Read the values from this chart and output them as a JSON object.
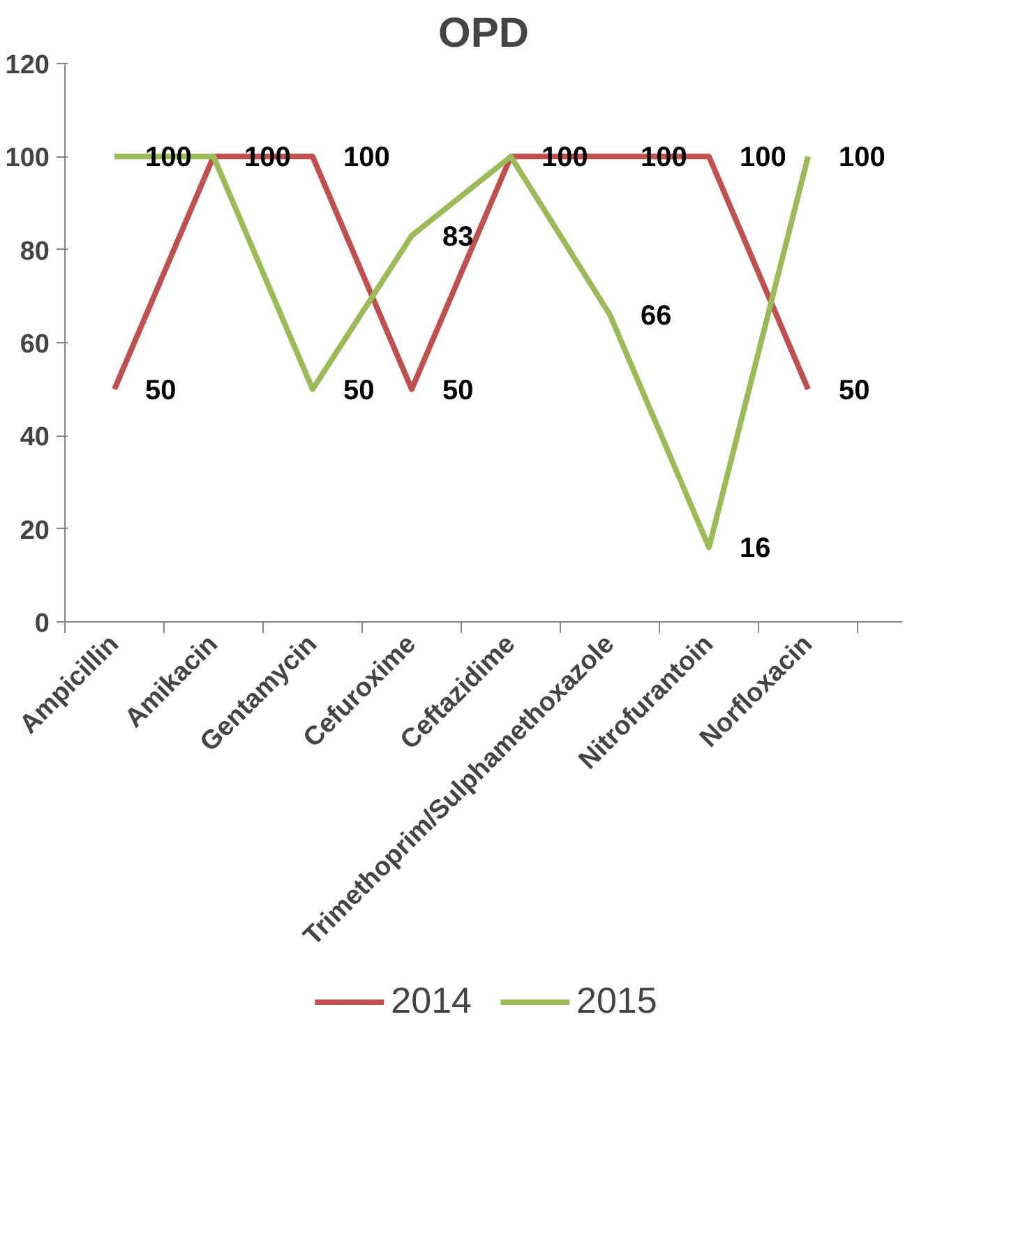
{
  "chart_data": {
    "type": "line",
    "title": "OPD",
    "categories": [
      "Ampicillin",
      "Amikacin",
      "Gentamycin",
      "Cefuroxime",
      "Ceftazidime",
      "Trimethoprim/Sulphamethoxazole",
      "Nitrofurantoin",
      "Norfloxacin"
    ],
    "series": [
      {
        "name": "2014",
        "color": "#c0504d",
        "values": [
          50,
          100,
          100,
          50,
          100,
          100,
          100,
          50
        ],
        "value_labels": [
          "50",
          "100",
          "100",
          "50",
          "100",
          "100",
          "100",
          "50"
        ]
      },
      {
        "name": "2015",
        "color": "#9bbb59",
        "values": [
          100,
          100,
          50,
          83,
          100,
          66,
          16,
          100
        ],
        "value_labels": [
          "100",
          null,
          "50",
          "83",
          null,
          "66",
          "16",
          "100"
        ]
      }
    ],
    "ylim": [
      0,
      120
    ],
    "yticks": [
      0,
      20,
      40,
      60,
      80,
      100,
      120
    ],
    "grid": false,
    "legend": "bottom",
    "marker": "none",
    "line_style": "solid"
  }
}
